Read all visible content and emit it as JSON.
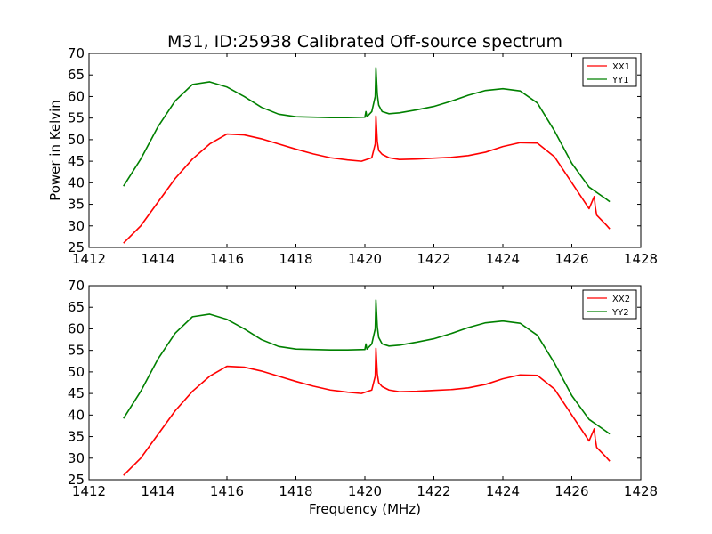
{
  "figure": {
    "title": "M31, ID:25938 Calibrated Off-source spectrum",
    "xlabel": "Frequency (MHz)"
  },
  "chart_data": [
    {
      "type": "line",
      "title": "M31, ID:25938 Calibrated Off-source spectrum",
      "xlabel": "",
      "ylabel": "Power in Kelvin",
      "xlim": [
        1412,
        1428
      ],
      "ylim": [
        25,
        70
      ],
      "xticks": [
        "1412",
        "1414",
        "1416",
        "1418",
        "1420",
        "1422",
        "1424",
        "1426",
        "1428"
      ],
      "yticks": [
        "25",
        "30",
        "35",
        "40",
        "45",
        "50",
        "55",
        "60",
        "65",
        "70"
      ],
      "grid": false,
      "legend": "top-right",
      "series": [
        {
          "name": "XX1",
          "color": "#ff0000",
          "x": [
            1413.0,
            1413.5,
            1414.0,
            1414.5,
            1415.0,
            1415.5,
            1416.0,
            1416.5,
            1417.0,
            1417.5,
            1418.0,
            1418.5,
            1419.0,
            1419.5,
            1419.9,
            1420.2,
            1420.3,
            1420.32,
            1420.36,
            1420.4,
            1420.5,
            1420.7,
            1421.0,
            1421.5,
            1422.0,
            1422.5,
            1423.0,
            1423.5,
            1424.0,
            1424.5,
            1425.0,
            1425.5,
            1426.0,
            1426.5,
            1426.65,
            1426.68,
            1426.72,
            1427.0,
            1427.1
          ],
          "y": [
            26.0,
            30.0,
            35.5,
            41.0,
            45.5,
            49.0,
            51.3,
            51.1,
            50.2,
            49.0,
            47.8,
            46.7,
            45.8,
            45.3,
            45.0,
            45.8,
            49.0,
            55.5,
            49.5,
            47.5,
            46.6,
            45.8,
            45.4,
            45.5,
            45.7,
            45.9,
            46.3,
            47.1,
            48.4,
            49.3,
            49.2,
            46.0,
            40.0,
            34.0,
            36.8,
            34.5,
            32.5,
            30.2,
            29.3
          ]
        },
        {
          "name": "YY1",
          "color": "#008000",
          "x": [
            1413.0,
            1413.5,
            1414.0,
            1414.5,
            1415.0,
            1415.5,
            1416.0,
            1416.5,
            1417.0,
            1417.5,
            1418.0,
            1418.5,
            1419.0,
            1419.5,
            1420.0,
            1420.03,
            1420.06,
            1420.2,
            1420.3,
            1420.32,
            1420.36,
            1420.4,
            1420.5,
            1420.7,
            1421.0,
            1421.5,
            1422.0,
            1422.5,
            1423.0,
            1423.5,
            1424.0,
            1424.5,
            1425.0,
            1425.5,
            1426.0,
            1426.5,
            1427.0,
            1427.1
          ],
          "y": [
            39.2,
            45.5,
            53.0,
            59.0,
            62.8,
            63.4,
            62.2,
            60.0,
            57.5,
            55.9,
            55.3,
            55.2,
            55.1,
            55.1,
            55.2,
            56.5,
            55.3,
            56.5,
            60.0,
            66.7,
            60.5,
            58.0,
            56.5,
            56.0,
            56.2,
            56.9,
            57.7,
            58.9,
            60.3,
            61.4,
            61.8,
            61.3,
            58.5,
            52.0,
            44.5,
            39.0,
            36.2,
            35.6
          ]
        }
      ]
    },
    {
      "type": "line",
      "title": "",
      "xlabel": "Frequency (MHz)",
      "ylabel": "",
      "xlim": [
        1412,
        1428
      ],
      "ylim": [
        25,
        70
      ],
      "xticks": [
        "1412",
        "1414",
        "1416",
        "1418",
        "1420",
        "1422",
        "1424",
        "1426",
        "1428"
      ],
      "yticks": [
        "25",
        "30",
        "35",
        "40",
        "45",
        "50",
        "55",
        "60",
        "65",
        "70"
      ],
      "grid": false,
      "legend": "top-right",
      "series": [
        {
          "name": "XX2",
          "color": "#ff0000",
          "x": [
            1413.0,
            1413.5,
            1414.0,
            1414.5,
            1415.0,
            1415.5,
            1416.0,
            1416.5,
            1417.0,
            1417.5,
            1418.0,
            1418.5,
            1419.0,
            1419.5,
            1419.9,
            1420.2,
            1420.3,
            1420.32,
            1420.36,
            1420.4,
            1420.5,
            1420.7,
            1421.0,
            1421.5,
            1422.0,
            1422.5,
            1423.0,
            1423.5,
            1424.0,
            1424.5,
            1425.0,
            1425.5,
            1426.0,
            1426.5,
            1426.65,
            1426.68,
            1426.72,
            1427.0,
            1427.1
          ],
          "y": [
            26.0,
            30.0,
            35.5,
            41.0,
            45.5,
            49.0,
            51.3,
            51.1,
            50.2,
            49.0,
            47.8,
            46.7,
            45.8,
            45.3,
            45.0,
            45.8,
            49.0,
            55.5,
            49.5,
            47.5,
            46.6,
            45.8,
            45.4,
            45.5,
            45.7,
            45.9,
            46.3,
            47.1,
            48.4,
            49.3,
            49.2,
            46.0,
            40.0,
            34.0,
            36.8,
            34.5,
            32.5,
            30.2,
            29.3
          ]
        },
        {
          "name": "YY2",
          "color": "#008000",
          "x": [
            1413.0,
            1413.5,
            1414.0,
            1414.5,
            1415.0,
            1415.5,
            1416.0,
            1416.5,
            1417.0,
            1417.5,
            1418.0,
            1418.5,
            1419.0,
            1419.5,
            1420.0,
            1420.03,
            1420.06,
            1420.2,
            1420.3,
            1420.32,
            1420.36,
            1420.4,
            1420.5,
            1420.7,
            1421.0,
            1421.5,
            1422.0,
            1422.5,
            1423.0,
            1423.5,
            1424.0,
            1424.5,
            1425.0,
            1425.5,
            1426.0,
            1426.5,
            1427.0,
            1427.1
          ],
          "y": [
            39.2,
            45.5,
            53.0,
            59.0,
            62.8,
            63.4,
            62.2,
            60.0,
            57.5,
            55.9,
            55.3,
            55.2,
            55.1,
            55.1,
            55.2,
            56.5,
            55.3,
            56.5,
            60.0,
            66.7,
            60.5,
            58.0,
            56.5,
            56.0,
            56.2,
            56.9,
            57.7,
            58.9,
            60.3,
            61.4,
            61.8,
            61.3,
            58.5,
            52.0,
            44.5,
            39.0,
            36.2,
            35.6
          ]
        }
      ]
    }
  ]
}
